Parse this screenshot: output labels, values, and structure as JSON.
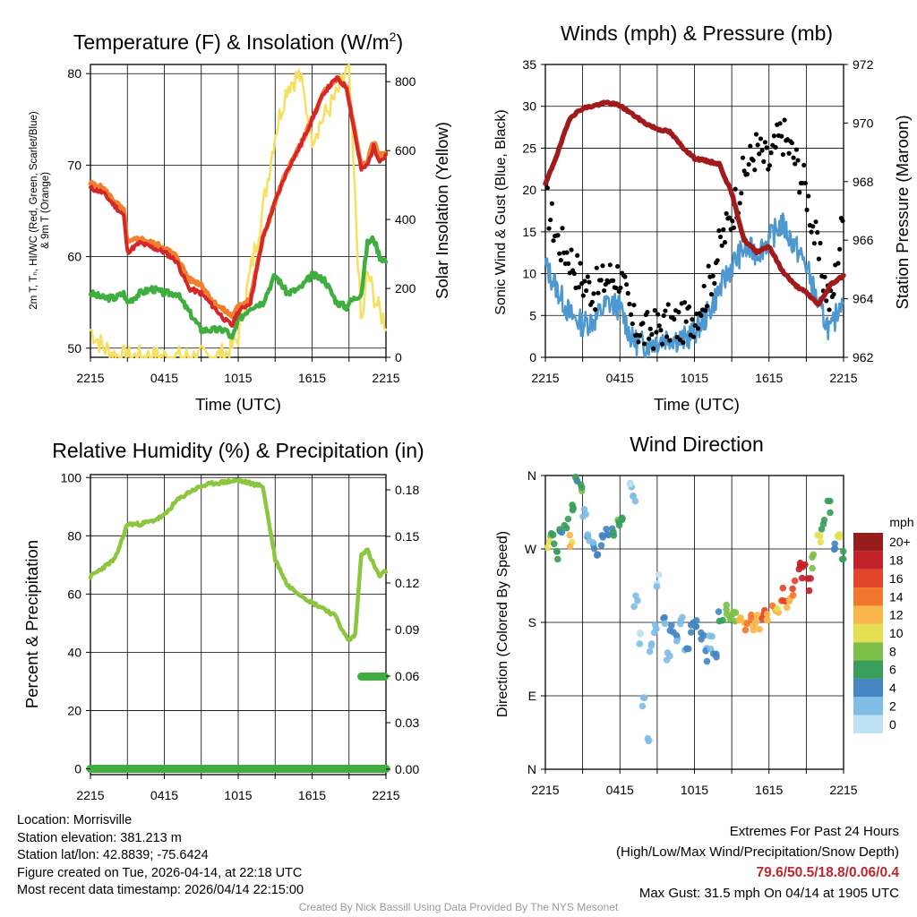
{
  "location": {
    "location_line": "Location: Morrisville",
    "elevation_line": "Station elevation: 381.213 m",
    "latlon_line": "Station lat/lon: 42.8839; -75.6424",
    "created_line": "Figure created on Tue, 2026-04-14, at 22:18 UTC",
    "recent_line": "Most recent data timestamp: 2026/04/14 22:15:00"
  },
  "extremes": {
    "title": "Extremes For Past 24 Hours",
    "subtitle": "(High/Low/Max Wind/Precipitation/Snow Depth)",
    "values": "79.6/50.5/18.8/0.06/0.4",
    "gust": "Max Gust: 31.5 mph On 04/14 at 1905 UTC"
  },
  "credit": "Created By Nick Bassill Using Data Provided By The NYS Mesonet",
  "colors": {
    "temp": "#d62728",
    "heat_index": "#f08030",
    "dewpoint": "#3fae3f",
    "temp9m": "#f08030",
    "solar": "#f7e060",
    "wind": "#4d98d0",
    "gust": "#000000",
    "pressure": "#a01c1c",
    "rh": "#8cc63f",
    "precip": "#3fae3f"
  },
  "chart_data": [
    {
      "id": "temp",
      "type": "line",
      "title_prefix": "Temperature (F) & Insolation (W/m",
      "title_sup": "2",
      "title_suffix": ")",
      "xlabel": "Time (UTC)",
      "ylabel_line1": "2m T, Tₙ, HI/WC (Red, Green, Scarlet/Blue)",
      "ylabel_line2": "& 9m T (Orange)",
      "y2label": "Solar Insolation (Yellow)",
      "x_ticks": [
        "2215",
        "0415",
        "1015",
        "1615",
        "2215"
      ],
      "ylim": [
        49,
        81
      ],
      "y_ticks": [
        50,
        60,
        70,
        80
      ],
      "y2lim": [
        0,
        850
      ],
      "y2_ticks": [
        0,
        200,
        400,
        600,
        800
      ],
      "x_hours": [
        0,
        1,
        2,
        2.7,
        3,
        4,
        5,
        6,
        7,
        8,
        9,
        10,
        11,
        11.5,
        12,
        13,
        14,
        15,
        16,
        17,
        18,
        19,
        20,
        20.8,
        21,
        22,
        22.5,
        23,
        23.5,
        24
      ],
      "series": [
        {
          "name": "2m T",
          "role": "temp",
          "values": [
            67.5,
            67,
            65.5,
            64.5,
            60.5,
            61.5,
            61,
            60.5,
            59.5,
            56.5,
            56,
            54.5,
            53,
            52.5,
            54,
            55,
            62,
            66,
            69.5,
            72,
            75,
            78,
            79.5,
            78.5,
            77,
            69.5,
            70,
            72,
            70.5,
            71
          ]
        },
        {
          "name": "9m T",
          "role": "temp9m",
          "values": [
            68,
            67.5,
            66,
            65,
            61.5,
            62,
            61.5,
            61,
            60,
            57.5,
            57,
            55,
            54,
            53.5,
            54.5,
            55.5,
            62,
            66,
            69.5,
            72,
            75,
            78,
            79.5,
            78.5,
            77,
            69.8,
            70.5,
            72.5,
            71,
            71.5
          ]
        },
        {
          "name": "Dewpoint",
          "role": "dewpoint",
          "values": [
            56,
            55.5,
            55.5,
            56,
            55,
            56,
            56.5,
            56,
            56,
            54,
            52,
            52,
            52,
            51,
            53,
            54.5,
            55,
            58,
            56,
            56.5,
            58,
            57.5,
            55,
            54.5,
            55,
            56,
            61.5,
            62,
            60,
            59.5
          ]
        },
        {
          "name": "Solar Insolation",
          "role": "solar",
          "axis": "y2",
          "values": [
            80,
            30,
            5,
            0,
            0,
            0,
            0,
            0,
            0,
            0,
            0,
            0,
            10,
            30,
            60,
            250,
            430,
            650,
            790,
            820,
            640,
            700,
            760,
            830,
            820,
            80,
            250,
            180,
            130,
            100
          ]
        }
      ]
    },
    {
      "id": "wind",
      "type": "line",
      "title": "Winds (mph) & Pressure (mb)",
      "xlabel": "Time (UTC)",
      "ylabel": "Sonic Wind & Gust (Blue, Black)",
      "y2label": "Station Pressure (Maroon)",
      "x_ticks": [
        "2215",
        "0415",
        "1015",
        "1615",
        "2215"
      ],
      "ylim": [
        0,
        35
      ],
      "y_ticks": [
        0,
        5,
        10,
        15,
        20,
        25,
        30,
        35
      ],
      "y2lim": [
        962,
        972
      ],
      "y2_ticks": [
        962,
        964,
        966,
        968,
        970,
        972
      ],
      "x_hours": [
        0,
        1,
        2,
        3,
        4,
        5,
        6,
        7,
        8,
        9,
        10,
        11,
        12,
        13,
        14,
        15,
        16,
        17,
        18,
        19,
        20,
        21,
        22,
        23,
        24
      ],
      "series": [
        {
          "name": "Sonic Wind",
          "role": "wind",
          "values": [
            11,
            8,
            5,
            4,
            4.5,
            6.5,
            6,
            2,
            1.5,
            2,
            2.5,
            2,
            3,
            5,
            8,
            11,
            13,
            12.5,
            14,
            16,
            13.5,
            11,
            6,
            3,
            8
          ]
        },
        {
          "name": "Gust",
          "role": "gust",
          "values": [
            19,
            14,
            12,
            9,
            8,
            9.5,
            10,
            4,
            3,
            3.5,
            4,
            4,
            5,
            8,
            13,
            17,
            22,
            25,
            23,
            27,
            24,
            20,
            12,
            6,
            17
          ]
        },
        {
          "name": "Station Pressure",
          "role": "pressure",
          "axis": "y2",
          "values": [
            967.9,
            969.0,
            970.2,
            970.5,
            970.6,
            970.7,
            970.6,
            970.3,
            970.0,
            969.8,
            969.7,
            969.2,
            968.8,
            968.7,
            968.6,
            967.6,
            966.0,
            965.6,
            965.8,
            965.0,
            964.5,
            964.2,
            963.8,
            964.5,
            964.8
          ]
        }
      ]
    },
    {
      "id": "rh",
      "type": "line",
      "title": "Relative Humidity (%) & Precipitation (in)",
      "ylabel": "Percent & Precipitation",
      "x_ticks": [
        "2215",
        "0415",
        "1015",
        "1615",
        "2215"
      ],
      "ylim": [
        -2,
        101
      ],
      "y_ticks": [
        0,
        20,
        40,
        60,
        80,
        100
      ],
      "y2_ticks": [
        "0.00",
        "0.03",
        "0.06",
        "0.09",
        "0.12",
        "0.15",
        "0.18"
      ],
      "x_hours": [
        0,
        1,
        2,
        3,
        4,
        5,
        6,
        7,
        8,
        9,
        10,
        11,
        12,
        13,
        14,
        15,
        16,
        17,
        18,
        19,
        20,
        20.5,
        21,
        21.5,
        22,
        22.5,
        23,
        23.5,
        24
      ],
      "series": [
        {
          "name": "Relative Humidity",
          "role": "rh",
          "values": [
            66,
            69,
            72,
            84,
            84,
            85,
            87,
            92,
            95,
            97,
            98,
            98.5,
            99,
            98,
            97,
            72,
            63,
            60,
            57,
            55,
            52,
            47,
            44,
            46,
            74,
            75,
            70,
            66,
            68
          ]
        },
        {
          "name": "Precipitation",
          "role": "precip",
          "values": [
            0,
            0,
            0,
            0,
            0,
            0,
            0,
            0,
            0,
            0,
            0,
            0,
            0,
            0,
            0,
            0,
            0,
            0,
            0,
            0,
            0,
            0,
            0,
            0,
            0.057,
            0.058,
            0.058,
            0.058,
            0.058
          ]
        }
      ]
    },
    {
      "id": "dir",
      "type": "scatter",
      "title": "Wind Direction",
      "ylabel": "Direction (Colored By Speed)",
      "x_ticks": [
        "2215",
        "0415",
        "1015",
        "1615",
        "2215"
      ],
      "y_ticks": [
        "N",
        "E",
        "S",
        "W",
        "N"
      ],
      "ylim": [
        0,
        360
      ],
      "legend_title": "mph",
      "legend_labels": [
        "0",
        "2",
        "4",
        "6",
        "8",
        "10",
        "12",
        "14",
        "16",
        "18",
        "20+"
      ],
      "legend_colors": [
        "#bfe3f5",
        "#80bde6",
        "#4585c1",
        "#3a9e5a",
        "#7cc04a",
        "#e5e053",
        "#f9b64a",
        "#f3762d",
        "#e2462a",
        "#c2222a",
        "#991c1c"
      ],
      "points": [
        {
          "x": 0.3,
          "dir": 277,
          "spd": 9
        },
        {
          "x": 0.6,
          "dir": 283,
          "spd": 7
        },
        {
          "x": 1.0,
          "dir": 262,
          "spd": 6
        },
        {
          "x": 1.3,
          "dir": 290,
          "spd": 5
        },
        {
          "x": 1.7,
          "dir": 300,
          "spd": 6
        },
        {
          "x": 2.0,
          "dir": 278,
          "spd": 11
        },
        {
          "x": 2.2,
          "dir": 317,
          "spd": 6
        },
        {
          "x": 2.5,
          "dir": 358,
          "spd": 5
        },
        {
          "x": 2.8,
          "dir": 340,
          "spd": 7
        },
        {
          "x": 3.2,
          "dir": 312,
          "spd": 2
        },
        {
          "x": 3.5,
          "dir": 285,
          "spd": 3
        },
        {
          "x": 3.8,
          "dir": 272,
          "spd": 3
        },
        {
          "x": 4.2,
          "dir": 265,
          "spd": 4
        },
        {
          "x": 4.6,
          "dir": 280,
          "spd": 4
        },
        {
          "x": 5.0,
          "dir": 295,
          "spd": 4
        },
        {
          "x": 5.4,
          "dir": 291,
          "spd": 5
        },
        {
          "x": 5.8,
          "dir": 300,
          "spd": 7
        },
        {
          "x": 6.3,
          "dir": 305,
          "spd": 6
        },
        {
          "x": 6.8,
          "dir": 352,
          "spd": 1
        },
        {
          "x": 7.1,
          "dir": 330,
          "spd": 2
        },
        {
          "x": 7.3,
          "dir": 205,
          "spd": 2
        },
        {
          "x": 7.6,
          "dir": 160,
          "spd": 1
        },
        {
          "x": 7.9,
          "dir": 80,
          "spd": 2
        },
        {
          "x": 8.2,
          "dir": 30,
          "spd": 1
        },
        {
          "x": 8.4,
          "dir": 150,
          "spd": 2
        },
        {
          "x": 8.8,
          "dir": 170,
          "spd": 3
        },
        {
          "x": 9.1,
          "dir": 230,
          "spd": 1
        },
        {
          "x": 9.5,
          "dir": 180,
          "spd": 3
        },
        {
          "x": 9.9,
          "dir": 140,
          "spd": 2
        },
        {
          "x": 10.2,
          "dir": 175,
          "spd": 4
        },
        {
          "x": 10.6,
          "dir": 165,
          "spd": 3
        },
        {
          "x": 11.0,
          "dir": 182,
          "spd": 2
        },
        {
          "x": 11.4,
          "dir": 150,
          "spd": 3
        },
        {
          "x": 11.8,
          "dir": 172,
          "spd": 4
        },
        {
          "x": 12.2,
          "dir": 180,
          "spd": 3
        },
        {
          "x": 12.6,
          "dir": 160,
          "spd": 4
        },
        {
          "x": 13.0,
          "dir": 140,
          "spd": 3
        },
        {
          "x": 13.3,
          "dir": 155,
          "spd": 2
        },
        {
          "x": 13.7,
          "dir": 135,
          "spd": 4
        },
        {
          "x": 14.1,
          "dir": 185,
          "spd": 5
        },
        {
          "x": 14.5,
          "dir": 195,
          "spd": 7
        },
        {
          "x": 14.9,
          "dir": 183,
          "spd": 8
        },
        {
          "x": 15.2,
          "dir": 188,
          "spd": 8
        },
        {
          "x": 15.6,
          "dir": 180,
          "spd": 12
        },
        {
          "x": 16.0,
          "dir": 177,
          "spd": 13
        },
        {
          "x": 16.4,
          "dir": 181,
          "spd": 14
        },
        {
          "x": 16.8,
          "dir": 178,
          "spd": 12
        },
        {
          "x": 17.2,
          "dir": 180,
          "spd": 12
        },
        {
          "x": 17.6,
          "dir": 186,
          "spd": 15
        },
        {
          "x": 18.0,
          "dir": 182,
          "spd": 12
        },
        {
          "x": 18.4,
          "dir": 193,
          "spd": 13
        },
        {
          "x": 18.8,
          "dir": 200,
          "spd": 11
        },
        {
          "x": 19.2,
          "dir": 215,
          "spd": 16
        },
        {
          "x": 19.6,
          "dir": 207,
          "spd": 13
        },
        {
          "x": 20.0,
          "dir": 222,
          "spd": 15
        },
        {
          "x": 20.4,
          "dir": 248,
          "spd": 18
        },
        {
          "x": 20.8,
          "dir": 243,
          "spd": 19
        },
        {
          "x": 21.2,
          "dir": 225,
          "spd": 18
        },
        {
          "x": 21.6,
          "dir": 255,
          "spd": 9
        },
        {
          "x": 22.0,
          "dir": 285,
          "spd": 10
        },
        {
          "x": 22.4,
          "dir": 300,
          "spd": 6
        },
        {
          "x": 22.8,
          "dir": 320,
          "spd": 5
        },
        {
          "x": 23.2,
          "dir": 275,
          "spd": 4
        },
        {
          "x": 23.6,
          "dir": 290,
          "spd": 10
        },
        {
          "x": 23.9,
          "dir": 262,
          "spd": 6
        }
      ]
    }
  ]
}
